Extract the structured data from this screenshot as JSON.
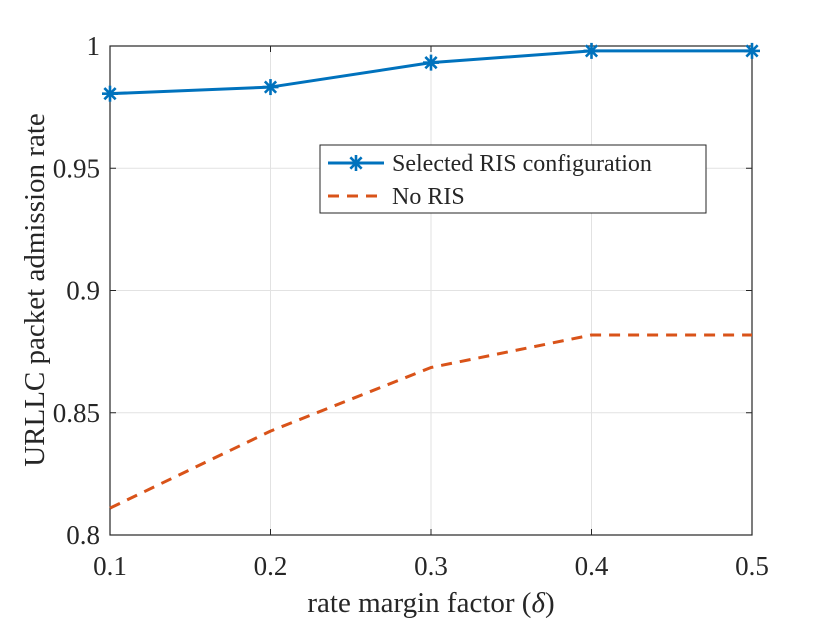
{
  "chart_data": {
    "type": "line",
    "title": "",
    "xlabel": "rate margin factor (",
    "xlabel_symbol": "δ",
    "xlabel_close": ")",
    "ylabel": "URLLC packet admission rate",
    "xlim": [
      0.1,
      0.5
    ],
    "ylim": [
      0.8,
      1.0
    ],
    "x_ticks": [
      0.1,
      0.2,
      0.3,
      0.4,
      0.5
    ],
    "x_tick_labels": [
      "0.1",
      "0.2",
      "0.3",
      "0.4",
      "0.5"
    ],
    "y_ticks": [
      0.8,
      0.85,
      0.9,
      0.95,
      1.0
    ],
    "y_tick_labels": [
      "0.8",
      "0.85",
      "0.9",
      "0.95",
      "1"
    ],
    "grid": true,
    "legend_position": "upper-center-right",
    "x": [
      0.1,
      0.2,
      0.3,
      0.4,
      0.5
    ],
    "series": [
      {
        "name": "Selected RIS configuration",
        "values": [
          0.9805,
          0.9832,
          0.9932,
          0.998,
          0.998
        ],
        "color": "#0072BD",
        "line_style": "solid",
        "marker": "asterisk"
      },
      {
        "name": "No RIS",
        "values": [
          0.811,
          0.8425,
          0.8685,
          0.8818,
          0.8818
        ],
        "color": "#D95319",
        "line_style": "dashed",
        "marker": "none"
      }
    ]
  }
}
